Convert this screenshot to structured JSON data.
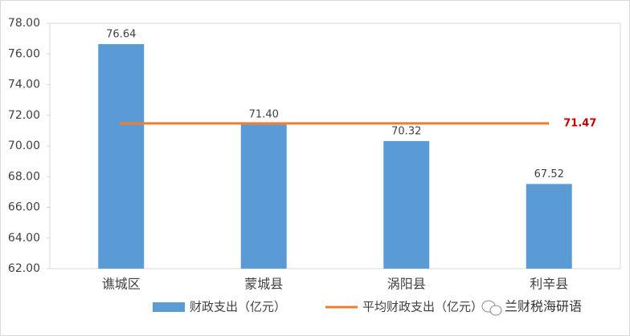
{
  "chart_data": {
    "type": "bar",
    "categories": [
      "谯城区",
      "蒙城县",
      "涡阳县",
      "利辛县"
    ],
    "series": [
      {
        "name": "财政支出（亿元）",
        "color": "#5b9bd5",
        "values": [
          76.64,
          71.4,
          70.32,
          67.52
        ],
        "value_labels": [
          "76.64",
          "71.40",
          "70.32",
          "67.52"
        ]
      }
    ],
    "average": {
      "name": "平均财政支出（亿元）",
      "color": "#ed7d31",
      "value": 71.47,
      "value_label": "71.47",
      "label_color": "#c00000"
    },
    "ylim": [
      62,
      78
    ],
    "yticks": [
      {
        "value": 62,
        "label": "62.00"
      },
      {
        "value": 64,
        "label": "64.00"
      },
      {
        "value": 66,
        "label": "66.00"
      },
      {
        "value": 68,
        "label": "68.00"
      },
      {
        "value": 70,
        "label": "70.00"
      },
      {
        "value": 72,
        "label": "72.00"
      },
      {
        "value": 74,
        "label": "74.00"
      },
      {
        "value": 76,
        "label": "76.00"
      },
      {
        "value": 78,
        "label": "78.00"
      }
    ],
    "grid": false,
    "watermark": "兰财税海研语"
  }
}
